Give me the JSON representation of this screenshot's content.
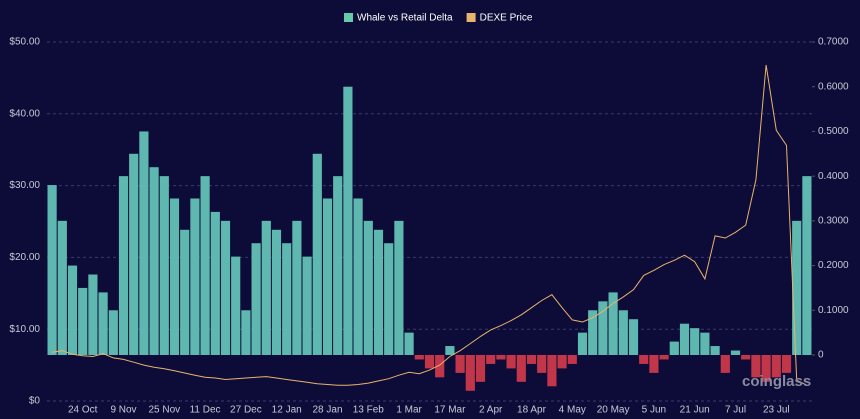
{
  "chart_data": {
    "type": "bar-line",
    "categories": [
      null,
      null,
      null,
      "24 Oct",
      null,
      null,
      null,
      "9 Nov",
      null,
      null,
      null,
      "25 Nov",
      null,
      null,
      null,
      "11 Dec",
      null,
      null,
      null,
      "27 Dec",
      null,
      null,
      null,
      "12 Jan",
      null,
      null,
      null,
      "28 Jan",
      null,
      null,
      null,
      "13 Feb",
      null,
      null,
      null,
      "1 Mar",
      null,
      null,
      null,
      "17 Mar",
      null,
      null,
      null,
      "2 Apr",
      null,
      null,
      null,
      "18 Apr",
      null,
      null,
      null,
      "4 May",
      null,
      null,
      null,
      "20 May",
      null,
      null,
      null,
      "5 Jun",
      null,
      null,
      null,
      "21 Jun",
      null,
      null,
      null,
      "7 Jul",
      null,
      null,
      null,
      "23 Jul",
      null,
      null,
      null
    ],
    "series": [
      {
        "name": "Whale vs Retail Delta",
        "type": "bar",
        "axis": "y2",
        "color": "#5fb8b0",
        "legend_color": "#66c9a9",
        "negative_color": "#c2364a",
        "values": [
          0.38,
          0.3,
          0.2,
          0.15,
          0.18,
          0.14,
          0.1,
          0.4,
          0.45,
          0.5,
          0.42,
          0.4,
          0.35,
          0.28,
          0.35,
          0.4,
          0.32,
          0.3,
          0.22,
          0.1,
          0.25,
          0.3,
          0.28,
          0.25,
          0.3,
          0.22,
          0.45,
          0.35,
          0.4,
          0.6,
          0.35,
          0.3,
          0.28,
          0.25,
          0.3,
          0.05,
          -0.01,
          -0.03,
          -0.05,
          0.02,
          -0.04,
          -0.08,
          -0.06,
          -0.02,
          -0.01,
          -0.03,
          -0.06,
          -0.02,
          -0.04,
          -0.07,
          -0.03,
          -0.02,
          0.05,
          0.1,
          0.12,
          0.14,
          0.1,
          0.08,
          -0.02,
          -0.04,
          -0.01,
          0.03,
          0.07,
          0.06,
          0.05,
          0.02,
          -0.04,
          0.01,
          -0.01,
          -0.05,
          -0.06,
          -0.05,
          -0.04,
          0.3,
          0.4
        ]
      },
      {
        "name": "DEXE Price",
        "type": "line",
        "axis": "y",
        "color": "#e9b36b",
        "values": [
          6.8,
          7,
          6.5,
          6.3,
          6.2,
          6.6,
          6,
          5.8,
          5.4,
          5,
          4.7,
          4.5,
          4.2,
          3.9,
          3.6,
          3.3,
          3.2,
          3,
          3.1,
          3.2,
          3.3,
          3.4,
          3.2,
          3,
          2.8,
          2.6,
          2.4,
          2.3,
          2.2,
          2.2,
          2.3,
          2.5,
          2.8,
          3.1,
          3.6,
          4,
          3.8,
          4.3,
          5,
          6.2,
          7,
          8,
          9,
          9.9,
          10.5,
          11.2,
          12,
          13,
          14,
          14.8,
          13,
          11.3,
          11,
          11.6,
          12.5,
          13.6,
          14.5,
          15.5,
          17.5,
          18.2,
          19,
          19.6,
          20.3,
          19.4,
          17,
          23,
          22.7,
          23.5,
          24.5,
          30.8,
          46.8,
          37.7,
          35.6,
          2.9,
          2.2
        ]
      }
    ],
    "ylim": [
      0,
      50
    ],
    "yticks": [
      {
        "value": 0,
        "label": "$0"
      },
      {
        "value": 10,
        "label": "$10.00"
      },
      {
        "value": 20,
        "label": "$20.00"
      },
      {
        "value": 30,
        "label": "$30.00"
      },
      {
        "value": 40,
        "label": "$40.00"
      },
      {
        "value": 50,
        "label": "$50.00"
      }
    ],
    "y2lim": [
      -0.1029,
      0.7
    ],
    "y2ticks": [
      0,
      {
        "value": 0.1,
        "label": "0.1000"
      },
      {
        "value": 0.2,
        "label": "0.2000"
      },
      {
        "value": 0.3,
        "label": "0.3000"
      },
      {
        "value": 0.4,
        "label": "0.4000"
      },
      {
        "value": 0.5,
        "label": "0.5000"
      },
      {
        "value": 0.6,
        "label": "0.6000"
      },
      {
        "value": 0.7,
        "label": "0.7000"
      }
    ],
    "grid": true,
    "watermark": "coinglass"
  }
}
